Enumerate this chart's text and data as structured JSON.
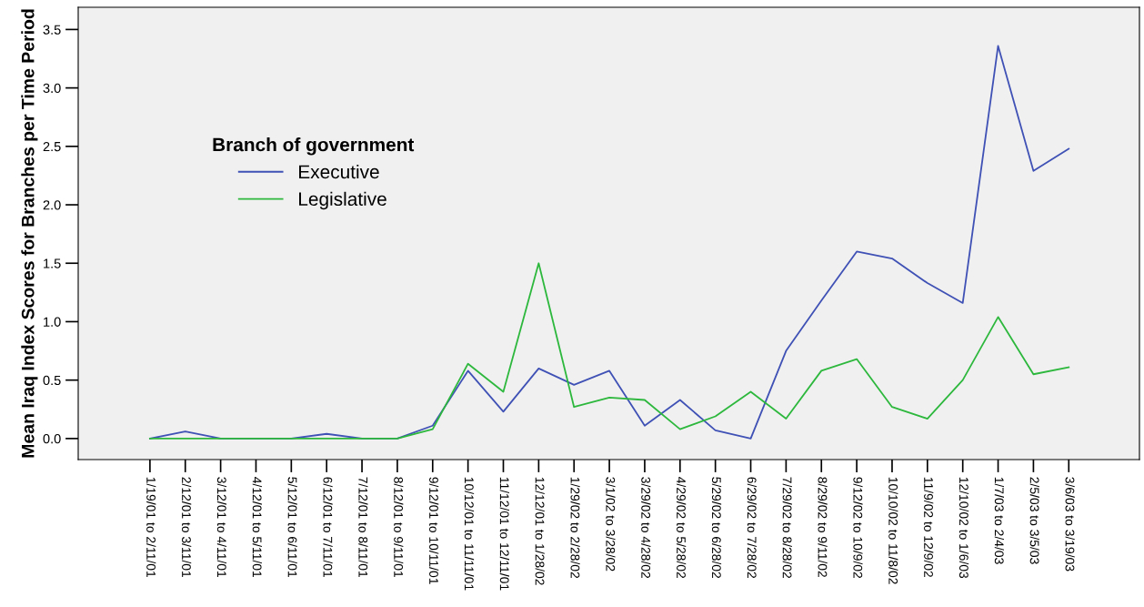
{
  "chart_data": {
    "type": "line",
    "ylabel": "Mean Iraq Index Scores for Branches per Time Period",
    "legend_title": "Branch of government",
    "legend": "top left",
    "categories": [
      "1/19/01 to 2/11/01",
      "2/12/01 to 3/11/01",
      "3/12/01 to 4/11/01",
      "4/12/01 to 5/11/01",
      "5/12/01 to 6/11/01",
      "6/12/01 to 7/11/01",
      "7/12/01 to 8/11/01",
      "8/12/01 to 9/11/01",
      "9/12/01 to 10/11/01",
      "10/12/01 to 11/11/01",
      "11/12/01 to 12/11/01",
      "12/12/01 to 1/28/02",
      "1/29/02 to 2/28/02",
      "3/1/02 to 3/28/02",
      "3/29/02 to 4/28/02",
      "4/29/02 to 5/28/02",
      "5/29/02 to 6/28/02",
      "6/29/02 to 7/28/02",
      "7/29/02 to 8/28/02",
      "8/29/02 to 9/11/02",
      "9/12/02 to 10/9/02",
      "10/10/02 to 11/8/02",
      "11/9/02 to 12/9/02",
      "12/10/02 to 1/6/03",
      "1/7/03 to 2/4/03",
      "2/5/03 to 3/5/03",
      "3/6/03 to 3/19/03"
    ],
    "series": [
      {
        "name": "Executive",
        "color": "#3f51b5",
        "values": [
          0,
          0.06,
          0,
          0,
          0,
          0.04,
          0,
          0,
          0.11,
          0.58,
          0.23,
          0.6,
          0.46,
          0.58,
          0.11,
          0.33,
          0.07,
          0,
          0.75,
          1.18,
          1.6,
          1.54,
          1.33,
          1.16,
          3.36,
          2.29,
          2.48
        ]
      },
      {
        "name": "Legislative",
        "color": "#2db83d",
        "values": [
          0,
          0,
          0,
          0,
          0,
          0,
          0,
          0,
          0.08,
          0.64,
          0.4,
          1.5,
          0.27,
          0.35,
          0.33,
          0.08,
          0.19,
          0.4,
          0.17,
          0.58,
          0.68,
          0.27,
          0.17,
          0.5,
          1.04,
          0.55,
          0.61
        ]
      }
    ],
    "ylim": [
      -0.18,
      3.69
    ],
    "yticks": [
      {
        "value": 0,
        "label": "0.0"
      },
      {
        "value": 0.5,
        "label": "0.5"
      },
      {
        "value": 1,
        "label": "1.0"
      },
      {
        "value": 1.5,
        "label": "1.5"
      },
      {
        "value": 2,
        "label": "2.0"
      },
      {
        "value": 2.5,
        "label": "2.5"
      },
      {
        "value": 3,
        "label": "3.0"
      },
      {
        "value": 3.5,
        "label": "3.5"
      }
    ],
    "grid": false,
    "marker": "none",
    "line_style": "solid"
  }
}
